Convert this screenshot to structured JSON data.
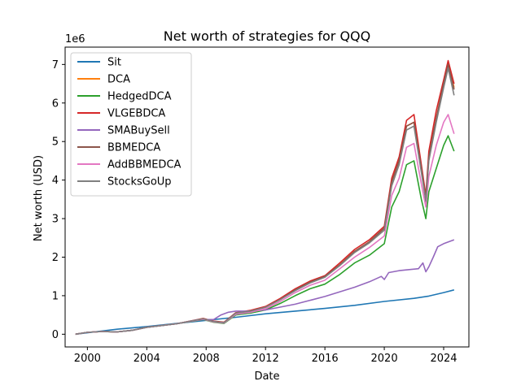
{
  "chart_data": {
    "type": "line",
    "title": "Net worth of strategies for QQQ",
    "xlabel": "Date",
    "ylabel": "Net worth (USD)",
    "y_offset_label": "1e6",
    "xlim": [
      1998.5,
      2025.7
    ],
    "ylim": [
      -0.33,
      7.45
    ],
    "x_ticks": [
      2000,
      2004,
      2008,
      2012,
      2016,
      2020,
      2024
    ],
    "x_tick_labels": [
      "2000",
      "2004",
      "2008",
      "2012",
      "2016",
      "2020",
      "2024"
    ],
    "y_ticks": [
      0,
      1,
      2,
      3,
      4,
      5,
      6,
      7
    ],
    "y_tick_labels": [
      "0",
      "1",
      "2",
      "3",
      "4",
      "5",
      "6",
      "7"
    ],
    "grid": false,
    "legend_position": "top-left",
    "series": [
      {
        "name": "Sit",
        "color": "#1f77b4",
        "x": [
          1999.2,
          2002,
          2004,
          2006,
          2008,
          2010,
          2012,
          2014,
          2016,
          2018,
          2020,
          2022,
          2023,
          2024,
          2024.7
        ],
        "y": [
          0,
          0.13,
          0.2,
          0.28,
          0.36,
          0.44,
          0.53,
          0.6,
          0.67,
          0.75,
          0.85,
          0.93,
          0.99,
          1.08,
          1.15
        ]
      },
      {
        "name": "DCA",
        "color": "#ff7f0e",
        "x": [
          1999.2,
          2000,
          2001,
          2002,
          2003,
          2004,
          2006,
          2007.8,
          2008.5,
          2009.2,
          2010,
          2011,
          2012,
          2013,
          2014,
          2015,
          2016,
          2017,
          2018,
          2019,
          2020,
          2020.5,
          2021,
          2021.5,
          2022,
          2022.5,
          2022.8,
          2023,
          2023.5,
          2024,
          2024.3,
          2024.7
        ],
        "y": [
          0,
          0.05,
          0.07,
          0.06,
          0.1,
          0.18,
          0.27,
          0.4,
          0.33,
          0.3,
          0.55,
          0.6,
          0.7,
          0.9,
          1.15,
          1.35,
          1.5,
          1.8,
          2.15,
          2.4,
          2.75,
          3.95,
          4.5,
          5.4,
          5.5,
          4.3,
          3.5,
          4.6,
          5.6,
          6.5,
          7.05,
          6.4
        ]
      },
      {
        "name": "HedgedDCA",
        "color": "#2ca02c",
        "x": [
          1999.2,
          2000,
          2001,
          2002,
          2003,
          2004,
          2006,
          2007.8,
          2008.5,
          2009.2,
          2010,
          2011,
          2012,
          2013,
          2014,
          2015,
          2016,
          2017,
          2018,
          2019,
          2020,
          2020.5,
          2021,
          2021.5,
          2022,
          2022.5,
          2022.8,
          2023,
          2023.5,
          2024,
          2024.3,
          2024.7
        ],
        "y": [
          0,
          0.05,
          0.07,
          0.06,
          0.1,
          0.18,
          0.27,
          0.38,
          0.31,
          0.28,
          0.5,
          0.55,
          0.63,
          0.8,
          1.0,
          1.18,
          1.3,
          1.55,
          1.85,
          2.05,
          2.35,
          3.3,
          3.7,
          4.4,
          4.5,
          3.5,
          3.0,
          3.7,
          4.3,
          4.9,
          5.15,
          4.75
        ]
      },
      {
        "name": "VLGEBDCA",
        "color": "#d62728",
        "x": [
          1999.2,
          2000,
          2001,
          2002,
          2003,
          2004,
          2006,
          2007.8,
          2008.5,
          2009.2,
          2010,
          2011,
          2012,
          2013,
          2014,
          2015,
          2016,
          2017,
          2018,
          2019,
          2020,
          2020.5,
          2021,
          2021.5,
          2022,
          2022.5,
          2022.8,
          2023,
          2023.5,
          2024,
          2024.3,
          2024.7
        ],
        "y": [
          0,
          0.05,
          0.07,
          0.06,
          0.1,
          0.18,
          0.27,
          0.41,
          0.34,
          0.31,
          0.56,
          0.62,
          0.72,
          0.93,
          1.18,
          1.38,
          1.52,
          1.85,
          2.2,
          2.45,
          2.8,
          4.05,
          4.6,
          5.55,
          5.7,
          4.4,
          3.6,
          4.75,
          5.8,
          6.6,
          7.1,
          6.5
        ]
      },
      {
        "name": "SMABuySell",
        "color": "#9467bd",
        "x": [
          1999.2,
          2000,
          2001,
          2002,
          2003,
          2004,
          2006,
          2007.5,
          2008.5,
          2009,
          2009.5,
          2010,
          2011,
          2012,
          2014,
          2016,
          2018,
          2019,
          2019.8,
          2020,
          2020.3,
          2021,
          2022.3,
          2022.6,
          2022.8,
          2023,
          2023.3,
          2023.6,
          2024,
          2024.7
        ],
        "y": [
          0,
          0.05,
          0.07,
          0.06,
          0.1,
          0.18,
          0.27,
          0.38,
          0.38,
          0.5,
          0.57,
          0.6,
          0.6,
          0.63,
          0.78,
          0.98,
          1.22,
          1.36,
          1.5,
          1.42,
          1.6,
          1.65,
          1.7,
          1.85,
          1.62,
          1.75,
          2.0,
          2.27,
          2.35,
          2.45
        ]
      },
      {
        "name": "BBMEDCA",
        "color": "#8c564b",
        "x": [
          1999.2,
          2000,
          2001,
          2002,
          2003,
          2004,
          2006,
          2007.8,
          2008.5,
          2009.2,
          2010,
          2011,
          2012,
          2013,
          2014,
          2015,
          2016,
          2017,
          2018,
          2019,
          2020,
          2020.5,
          2021,
          2021.5,
          2022,
          2022.5,
          2022.8,
          2023,
          2023.5,
          2024,
          2024.3,
          2024.7
        ],
        "y": [
          0,
          0.05,
          0.07,
          0.06,
          0.1,
          0.18,
          0.27,
          0.4,
          0.33,
          0.3,
          0.55,
          0.6,
          0.7,
          0.9,
          1.15,
          1.35,
          1.5,
          1.8,
          2.15,
          2.4,
          2.75,
          3.95,
          4.5,
          5.4,
          5.5,
          4.3,
          3.5,
          4.6,
          5.6,
          6.5,
          7.0,
          6.35
        ]
      },
      {
        "name": "AddBBMEDCA",
        "color": "#e377c2",
        "x": [
          1999.2,
          2000,
          2001,
          2002,
          2003,
          2004,
          2006,
          2007.8,
          2008.5,
          2009.2,
          2010,
          2011,
          2012,
          2013,
          2014,
          2015,
          2016,
          2017,
          2018,
          2019,
          2020,
          2020.5,
          2021,
          2021.5,
          2022,
          2022.5,
          2022.8,
          2023,
          2023.5,
          2024,
          2024.3,
          2024.7
        ],
        "y": [
          0,
          0.05,
          0.07,
          0.06,
          0.1,
          0.18,
          0.27,
          0.39,
          0.32,
          0.29,
          0.52,
          0.57,
          0.66,
          0.85,
          1.08,
          1.27,
          1.4,
          1.7,
          2.0,
          2.25,
          2.55,
          3.6,
          4.05,
          4.85,
          4.95,
          3.9,
          3.3,
          4.1,
          4.9,
          5.5,
          5.7,
          5.2
        ]
      },
      {
        "name": "StocksGoUp",
        "color": "#7f7f7f",
        "x": [
          1999.2,
          2000,
          2001,
          2002,
          2003,
          2004,
          2006,
          2007.8,
          2008.5,
          2009.2,
          2010,
          2011,
          2012,
          2013,
          2014,
          2015,
          2016,
          2017,
          2018,
          2019,
          2020,
          2020.5,
          2021,
          2021.5,
          2022,
          2022.5,
          2022.8,
          2023,
          2023.5,
          2024,
          2024.3,
          2024.7
        ],
        "y": [
          0,
          0.05,
          0.07,
          0.06,
          0.1,
          0.18,
          0.27,
          0.4,
          0.33,
          0.3,
          0.55,
          0.6,
          0.7,
          0.9,
          1.13,
          1.33,
          1.48,
          1.78,
          2.12,
          2.37,
          2.7,
          3.85,
          4.4,
          5.3,
          5.4,
          4.2,
          3.45,
          4.5,
          5.5,
          6.4,
          6.9,
          6.2
        ]
      }
    ]
  }
}
